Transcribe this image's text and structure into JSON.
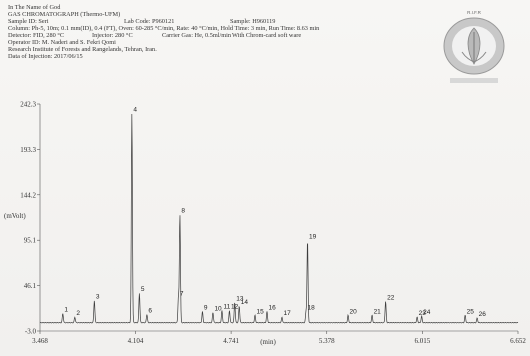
{
  "header": {
    "line1": "In The Name of God",
    "line2": "GAS CHROMATOGRAPH (Thermo-UFM)",
    "sample_id": "Sample ID: Seri",
    "lab_code": "Lab Code: P960121",
    "sample": "Sample: H960119",
    "line4": "Column: Ph-5, 10m; 0.1 mm(ID), 0.4 (FT), Oven: 60-285 °C/min, Rate: 40 °C/min, Hold Time: 3 min, Run Time: 8.63 min",
    "detector": "Detector: FID, 280 °C",
    "injector": "Injector: 280 °C",
    "carrier": "Carrier Gas: He, 0.5ml/min",
    "software": "With Chrom-card soft ware",
    "line6": "Operator ID: M. Naderi and S. Fekri Qomi",
    "line7": "Research Institute of Forests and Rangelands, Tehran, Iran.",
    "line8": "Data of Injection: 2017/06/15"
  },
  "logo": {
    "acronym": "R.I.F.R"
  },
  "chart_data": {
    "type": "line",
    "xlabel": "(min)",
    "ylabel": "(mVolt)",
    "xlim": [
      3.468,
      6.652
    ],
    "ylim": [
      -3.0,
      242.3
    ],
    "x_ticks": [
      "3.468",
      "4.104",
      "4.741",
      "5.378",
      "6.015",
      "6.652"
    ],
    "y_ticks": [
      "242.3",
      "193.3",
      "144.2",
      "95.1",
      "46.1",
      "-3.0"
    ],
    "baseline": 6,
    "peaks": [
      {
        "label": "1",
        "x": 3.62,
        "y": 16
      },
      {
        "label": "2",
        "x": 3.7,
        "y": 12
      },
      {
        "label": "3",
        "x": 3.83,
        "y": 30
      },
      {
        "label": "4",
        "x": 4.08,
        "y": 232
      },
      {
        "label": "5",
        "x": 4.13,
        "y": 38
      },
      {
        "label": "6",
        "x": 4.18,
        "y": 15
      },
      {
        "label": "7",
        "x": 4.39,
        "y": 33
      },
      {
        "label": "8",
        "x": 4.4,
        "y": 123
      },
      {
        "label": "9",
        "x": 4.55,
        "y": 18
      },
      {
        "label": "10",
        "x": 4.62,
        "y": 17
      },
      {
        "label": "11",
        "x": 4.68,
        "y": 19
      },
      {
        "label": "12",
        "x": 4.73,
        "y": 19
      },
      {
        "label": "13",
        "x": 4.765,
        "y": 28
      },
      {
        "label": "14",
        "x": 4.795,
        "y": 24
      },
      {
        "label": "15",
        "x": 4.9,
        "y": 14
      },
      {
        "label": "16",
        "x": 4.98,
        "y": 18
      },
      {
        "label": "17",
        "x": 5.08,
        "y": 12
      },
      {
        "label": "18",
        "x": 5.24,
        "y": 18
      },
      {
        "label": "19",
        "x": 5.25,
        "y": 95
      },
      {
        "label": "20",
        "x": 5.52,
        "y": 14
      },
      {
        "label": "21",
        "x": 5.68,
        "y": 14
      },
      {
        "label": "22",
        "x": 5.77,
        "y": 29
      },
      {
        "label": "23",
        "x": 5.98,
        "y": 12
      },
      {
        "label": "24",
        "x": 6.01,
        "y": 13
      },
      {
        "label": "25",
        "x": 6.3,
        "y": 14
      },
      {
        "label": "26",
        "x": 6.38,
        "y": 11
      }
    ]
  }
}
